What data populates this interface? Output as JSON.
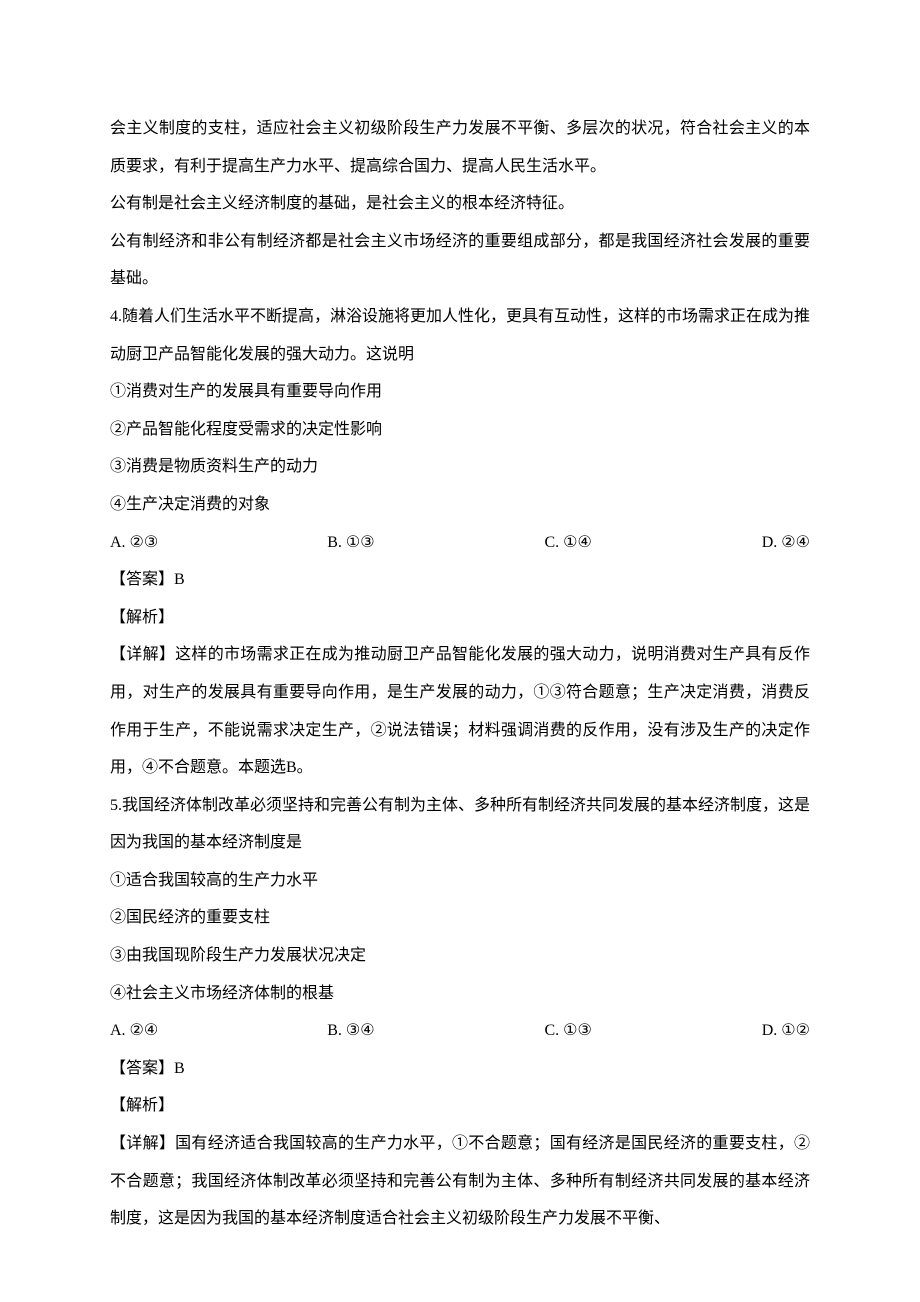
{
  "intro": {
    "p1": "会主义制度的支柱，适应社会主义初级阶段生产力发展不平衡、多层次的状况，符合社会主义的本质要求，有利于提高生产力水平、提高综合国力、提高人民生活水平。",
    "p2": "公有制是社会主义经济制度的基础，是社会主义的根本经济特征。",
    "p3": "公有制经济和非公有制经济都是社会主义市场经济的重要组成部分，都是我国经济社会发展的重要基础。"
  },
  "q4": {
    "stem": "4.随着人们生活水平不断提高，淋浴设施将更加人性化，更具有互动性，这样的市场需求正在成为推动厨卫产品智能化发展的强大动力。这说明",
    "s1": "①消费对生产的发展具有重要导向作用",
    "s2": "②产品智能化程度受需求的决定性影响",
    "s3": "③消费是物质资料生产的动力",
    "s4": "④生产决定消费的对象",
    "optA": "A. ②③",
    "optB": "B. ①③",
    "optC": "C. ①④",
    "optD": "D. ②④",
    "ans": "【答案】B",
    "jx": "【解析】",
    "detail": "【详解】这样的市场需求正在成为推动厨卫产品智能化发展的强大动力，说明消费对生产具有反作用，对生产的发展具有重要导向作用，是生产发展的动力，①③符合题意；生产决定消费，消费反作用于生产，不能说需求决定生产，②说法错误；材料强调消费的反作用，没有涉及生产的决定作用，④不合题意。本题选B。"
  },
  "q5": {
    "stem": "5.我国经济体制改革必须坚持和完善公有制为主体、多种所有制经济共同发展的基本经济制度，这是因为我国的基本经济制度是",
    "s1": "①适合我国较高的生产力水平",
    "s2": "②国民经济的重要支柱",
    "s3": "③由我国现阶段生产力发展状况决定",
    "s4": "④社会主义市场经济体制的根基",
    "optA": "A. ②④",
    "optB": "B. ③④",
    "optC": "C. ①③",
    "optD": "D. ①②",
    "ans": "【答案】B",
    "jx": "【解析】",
    "detail": "【详解】国有经济适合我国较高的生产力水平，①不合题意；国有经济是国民经济的重要支柱，②不合题意；我国经济体制改革必须坚持和完善公有制为主体、多种所有制经济共同发展的基本经济制度，这是因为我国的基本经济制度适合社会主义初级阶段生产力发展不平衡、"
  }
}
